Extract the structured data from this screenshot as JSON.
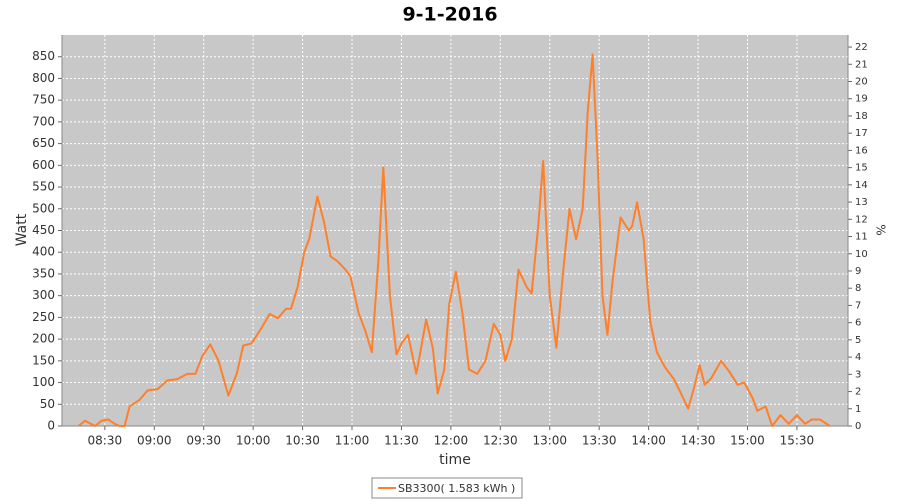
{
  "chart_data": {
    "type": "line",
    "title": "9-1-2016",
    "x_label": "time",
    "y_label": "Watt",
    "y2_label": "%",
    "x": [
      494,
      498,
      504,
      508,
      512,
      516,
      519,
      522,
      525,
      531,
      536,
      542,
      548,
      554,
      560,
      565,
      569,
      574,
      579,
      585,
      590,
      594,
      599,
      605,
      610,
      615,
      620,
      623,
      627,
      631,
      634,
      639,
      643,
      647,
      651,
      656,
      659,
      664,
      668,
      672,
      676,
      679,
      683,
      687,
      690,
      694,
      699,
      701,
      705,
      709,
      712,
      716,
      719,
      723,
      727,
      731,
      736,
      741,
      746,
      750,
      753,
      757,
      761,
      766,
      769,
      773,
      776,
      780,
      784,
      788,
      792,
      796,
      800,
      803,
      806,
      809,
      812,
      815,
      818,
      823,
      828,
      830,
      833,
      837,
      841,
      845,
      850,
      855,
      859,
      864,
      867,
      871,
      874,
      878,
      884,
      889,
      894,
      898,
      903,
      906,
      911,
      915,
      920,
      925,
      930,
      935,
      939,
      944,
      950
    ],
    "series": [
      {
        "name": "SB3300( 1.583 kWh )",
        "color": "#ff7f2a",
        "values": [
          0,
          12,
          0,
          12,
          15,
          5,
          0,
          0,
          45,
          60,
          82,
          85,
          105,
          108,
          120,
          120,
          160,
          188,
          150,
          70,
          120,
          185,
          190,
          225,
          258,
          248,
          270,
          270,
          320,
          400,
          430,
          528,
          470,
          390,
          380,
          360,
          345,
          260,
          220,
          170,
          380,
          595,
          300,
          165,
          190,
          210,
          120,
          160,
          245,
          180,
          75,
          130,
          280,
          355,
          260,
          130,
          120,
          150,
          235,
          210,
          150,
          200,
          360,
          320,
          305,
          460,
          610,
          300,
          180,
          350,
          500,
          430,
          500,
          720,
          855,
          620,
          300,
          210,
          330,
          480,
          450,
          460,
          515,
          430,
          240,
          170,
          135,
          110,
          80,
          40,
          80,
          140,
          95,
          110,
          150,
          125,
          95,
          100,
          65,
          35,
          45,
          0,
          25,
          5,
          25,
          5,
          15,
          15,
          0
        ]
      }
    ],
    "xlim": [
      484,
      961
    ],
    "xticks": [
      {
        "value": 510,
        "label": "08:30"
      },
      {
        "value": 540,
        "label": "09:00"
      },
      {
        "value": 570,
        "label": "09:30"
      },
      {
        "value": 600,
        "label": "10:00"
      },
      {
        "value": 630,
        "label": "10:30"
      },
      {
        "value": 660,
        "label": "11:00"
      },
      {
        "value": 690,
        "label": "11:30"
      },
      {
        "value": 720,
        "label": "12:00"
      },
      {
        "value": 750,
        "label": "12:30"
      },
      {
        "value": 780,
        "label": "13:00"
      },
      {
        "value": 810,
        "label": "13:30"
      },
      {
        "value": 840,
        "label": "14:00"
      },
      {
        "value": 870,
        "label": "14:30"
      },
      {
        "value": 900,
        "label": "15:00"
      },
      {
        "value": 930,
        "label": "15:30"
      }
    ],
    "ylim": [
      0,
      900
    ],
    "yticks": [
      0,
      50,
      100,
      150,
      200,
      250,
      300,
      350,
      400,
      450,
      500,
      550,
      600,
      650,
      700,
      750,
      800,
      850
    ],
    "y2lim": [
      0,
      22.7
    ],
    "y2ticks": [
      0,
      1,
      2,
      3,
      4,
      5,
      6,
      7,
      8,
      9,
      10,
      11,
      12,
      13,
      14,
      15,
      16,
      17,
      18,
      19,
      20,
      21,
      22
    ],
    "grid": true
  }
}
